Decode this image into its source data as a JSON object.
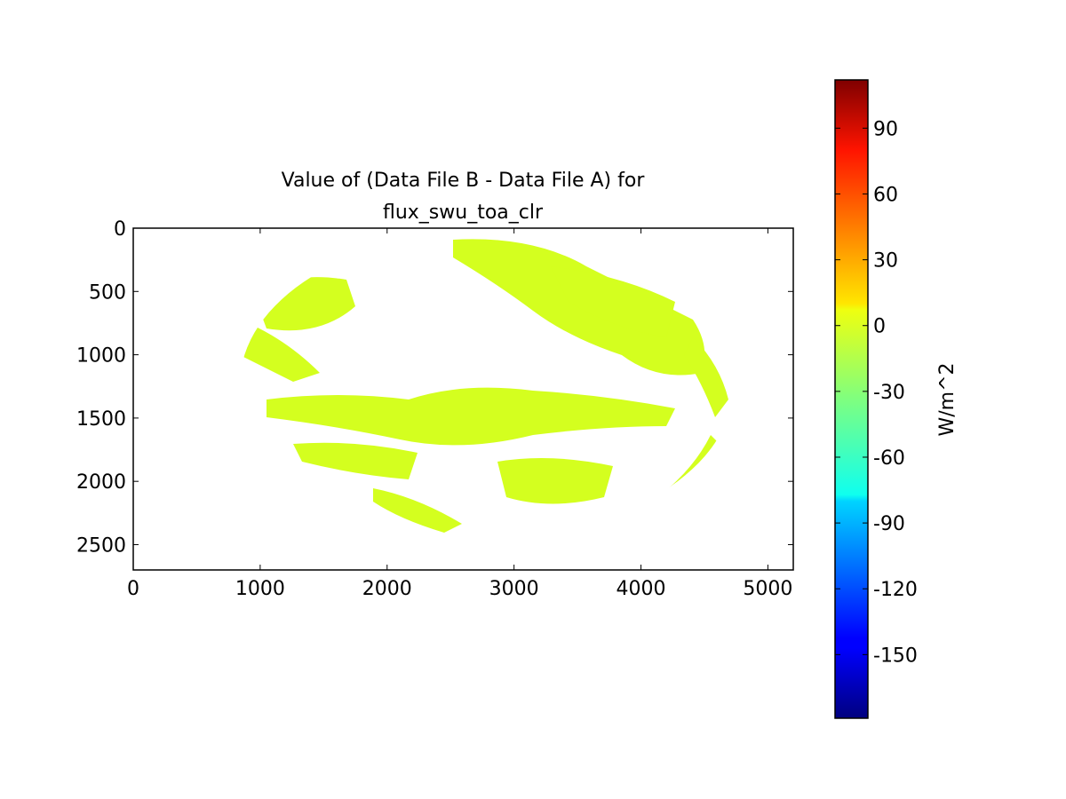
{
  "chart_data": {
    "type": "image",
    "title": [
      "Value of (Data File B - Data File A) for",
      "flux_swu_toa_clr"
    ],
    "xlim": [
      0,
      5200
    ],
    "xticks": [
      0,
      1000,
      2000,
      3000,
      4000,
      5000
    ],
    "ylim": [
      2700,
      0
    ],
    "yticks": [
      0,
      500,
      1000,
      1500,
      2000,
      2500
    ],
    "color": "#d4ff1f",
    "colorbar": {
      "colormap": "jet",
      "label": "W/m^2",
      "lim": [
        -179,
        112
      ],
      "ticks": [
        -150,
        -120,
        -90,
        -60,
        -30,
        0,
        30,
        60,
        90
      ]
    }
  }
}
